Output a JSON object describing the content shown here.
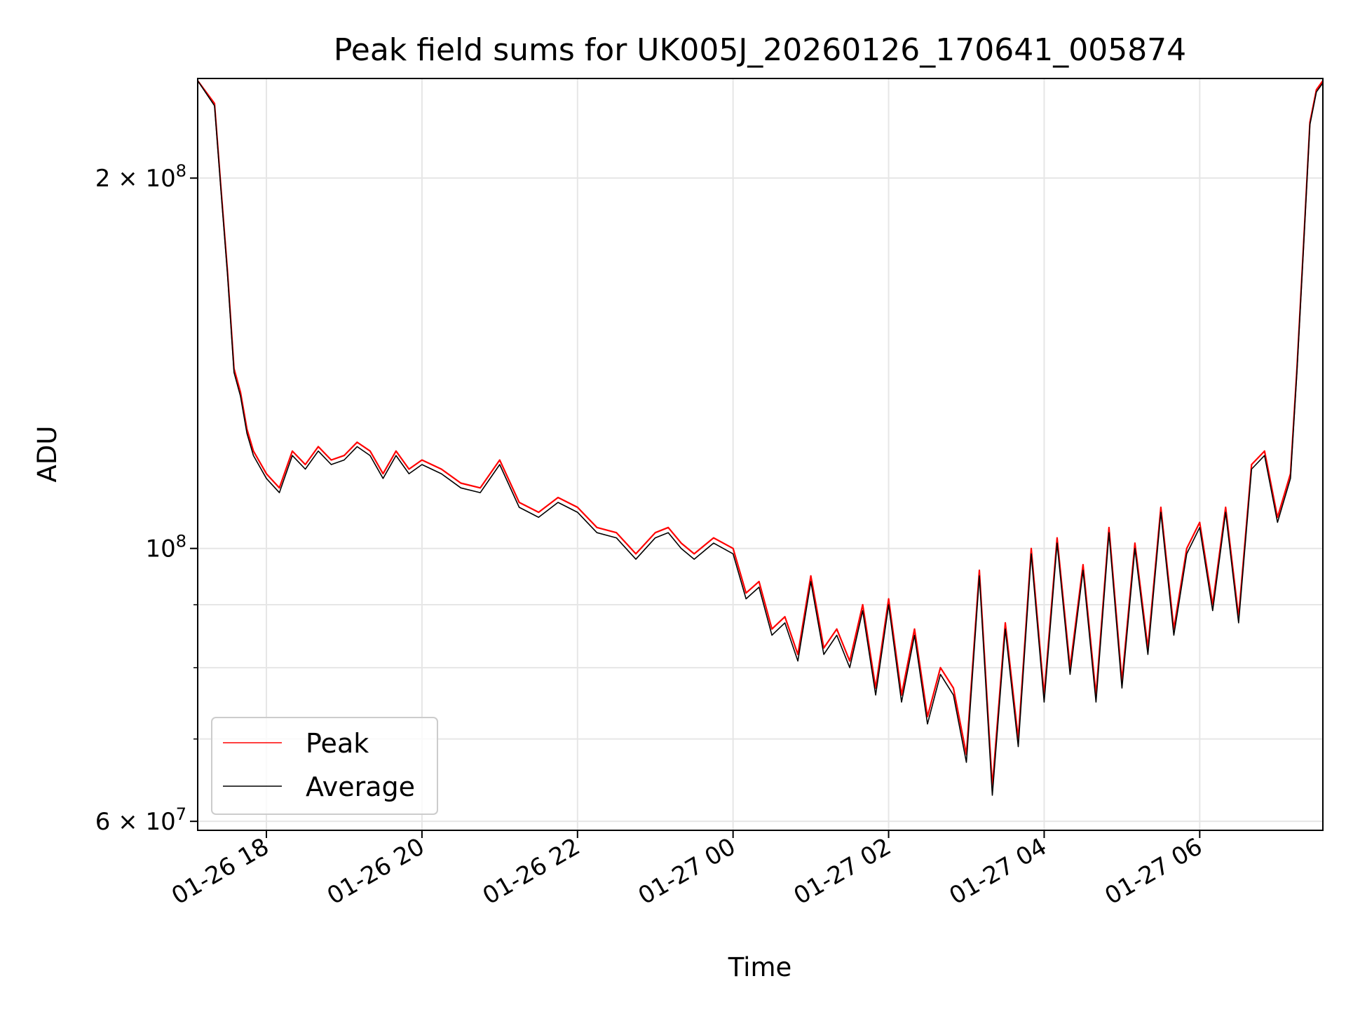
{
  "chart_data": {
    "type": "line",
    "title": "Peak field sums for UK005J_20260126_170641_005874",
    "xlabel": "Time",
    "ylabel": "ADU",
    "yscale": "log",
    "ylim": [
      59000000,
      241000000
    ],
    "xlim": [
      "01-26 17:07",
      "01-27 07:35"
    ],
    "grid": true,
    "legend_position": "lower-left",
    "x_ticks": [
      "01-26 18",
      "01-26 20",
      "01-26 22",
      "01-27 00",
      "01-27 02",
      "01-27 04",
      "01-27 06"
    ],
    "y_ticks": [
      {
        "value": 200000000,
        "mantissa": "2",
        "exponent": "8"
      },
      {
        "value": 100000000,
        "mantissa": "",
        "exponent": "8"
      },
      {
        "value": 60000000,
        "mantissa": "6",
        "exponent": "7"
      }
    ],
    "x": [
      "01-26 17:07",
      "01-26 17:20",
      "01-26 17:25",
      "01-26 17:30",
      "01-26 17:35",
      "01-26 17:40",
      "01-26 17:45",
      "01-26 17:50",
      "01-26 18:00",
      "01-26 18:10",
      "01-26 18:20",
      "01-26 18:30",
      "01-26 18:40",
      "01-26 18:50",
      "01-26 19:00",
      "01-26 19:10",
      "01-26 19:20",
      "01-26 19:30",
      "01-26 19:40",
      "01-26 19:50",
      "01-26 20:00",
      "01-26 20:15",
      "01-26 20:30",
      "01-26 20:45",
      "01-26 21:00",
      "01-26 21:15",
      "01-26 21:30",
      "01-26 21:45",
      "01-26 22:00",
      "01-26 22:15",
      "01-26 22:30",
      "01-26 22:45",
      "01-26 23:00",
      "01-26 23:10",
      "01-26 23:20",
      "01-26 23:30",
      "01-26 23:45",
      "01-27 00:00",
      "01-27 00:10",
      "01-27 00:20",
      "01-27 00:30",
      "01-27 00:40",
      "01-27 00:50",
      "01-27 01:00",
      "01-27 01:10",
      "01-27 01:20",
      "01-27 01:30",
      "01-27 01:40",
      "01-27 01:50",
      "01-27 02:00",
      "01-27 02:10",
      "01-27 02:20",
      "01-27 02:30",
      "01-27 02:40",
      "01-27 02:50",
      "01-27 03:00",
      "01-27 03:10",
      "01-27 03:20",
      "01-27 03:30",
      "01-27 03:40",
      "01-27 03:50",
      "01-27 04:00",
      "01-27 04:10",
      "01-27 04:20",
      "01-27 04:30",
      "01-27 04:40",
      "01-27 04:50",
      "01-27 05:00",
      "01-27 05:10",
      "01-27 05:20",
      "01-27 05:30",
      "01-27 05:40",
      "01-27 05:50",
      "01-27 06:00",
      "01-27 06:10",
      "01-27 06:20",
      "01-27 06:30",
      "01-27 06:40",
      "01-27 06:50",
      "01-27 07:00",
      "01-27 07:10",
      "01-27 07:15",
      "01-27 07:20",
      "01-27 07:25",
      "01-27 07:30",
      "01-27 07:35"
    ],
    "series": [
      {
        "name": "Peak",
        "color": "#ff0000",
        "values": [
          240000000,
          230000000,
          196000000,
          168000000,
          140000000,
          134000000,
          125000000,
          120000000,
          115000000,
          112000000,
          120000000,
          117000000,
          121000000,
          118000000,
          119000000,
          122000000,
          120000000,
          115000000,
          120000000,
          116000000,
          118000000,
          116000000,
          113000000,
          112000000,
          118000000,
          109000000,
          107000000,
          110000000,
          108000000,
          104000000,
          103000000,
          99000000,
          103000000,
          104000000,
          101000000,
          99000000,
          102000000,
          100000000,
          92000000,
          94000000,
          86000000,
          88000000,
          82000000,
          95000000,
          83000000,
          86000000,
          81000000,
          90000000,
          77000000,
          91000000,
          76000000,
          86000000,
          73000000,
          80000000,
          77000000,
          68000000,
          96000000,
          64000000,
          87000000,
          70000000,
          100000000,
          76000000,
          102000000,
          80000000,
          97000000,
          76000000,
          104000000,
          78000000,
          101000000,
          83000000,
          108000000,
          86000000,
          100000000,
          105000000,
          90000000,
          108000000,
          88000000,
          117000000,
          120000000,
          106000000,
          115000000,
          140000000,
          176000000,
          222000000,
          236000000,
          240000000
        ]
      },
      {
        "name": "Average",
        "color": "#000000",
        "values": [
          240000000,
          229000000,
          195000000,
          167000000,
          139000000,
          133000000,
          124000000,
          119000000,
          114000000,
          111000000,
          119000000,
          116000000,
          120000000,
          117000000,
          118000000,
          121000000,
          119000000,
          114000000,
          119000000,
          115000000,
          117000000,
          115000000,
          112000000,
          111000000,
          117000000,
          108000000,
          106000000,
          109000000,
          107000000,
          103000000,
          102000000,
          98000000,
          102000000,
          103000000,
          100000000,
          98000000,
          101000000,
          99000000,
          91000000,
          93000000,
          85000000,
          87000000,
          81000000,
          94000000,
          82000000,
          85000000,
          80000000,
          89000000,
          76000000,
          90000000,
          75000000,
          85000000,
          72000000,
          79000000,
          76000000,
          67000000,
          95000000,
          63000000,
          86000000,
          69000000,
          99000000,
          75000000,
          101000000,
          79000000,
          96000000,
          75000000,
          103000000,
          77000000,
          100000000,
          82000000,
          107000000,
          85000000,
          99000000,
          104000000,
          89000000,
          107000000,
          87000000,
          116000000,
          119000000,
          105000000,
          114000000,
          139000000,
          175000000,
          221000000,
          235000000,
          239000000
        ]
      }
    ]
  }
}
